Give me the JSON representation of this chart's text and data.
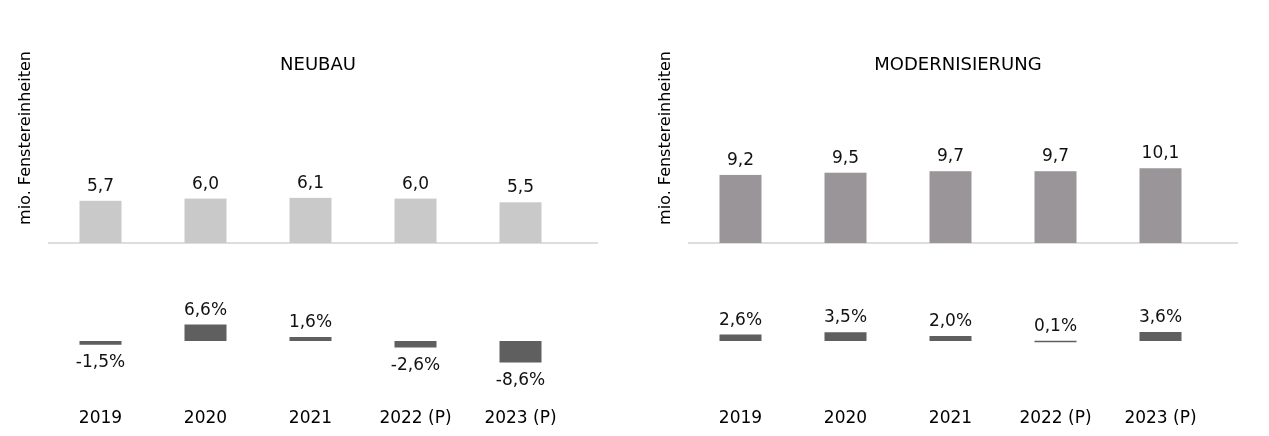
{
  "chart_data": [
    {
      "type": "bar",
      "title": "NEUBAU",
      "ylabel": "mio. Fenstereinheiten",
      "categories": [
        null,
        null,
        null,
        null,
        null
      ],
      "series": [
        {
          "color": "#c9c9c9",
          "values": [
            5.7,
            6.0,
            6.1,
            6.0,
            5.5
          ],
          "value_labels": [
            "5,7",
            "6,0",
            "6,1",
            "6,0",
            "5,5"
          ]
        }
      ]
    },
    {
      "type": "bar",
      "tick_labels": "x",
      "categories": [
        "2019",
        "2020",
        "2021",
        "2022 (P)",
        "2023 (P)"
      ],
      "series": [
        {
          "color": "#5f5f5f",
          "values": [
            -1.5,
            6.6,
            1.6,
            -2.6,
            -8.6
          ],
          "value_labels": [
            "-1,5%",
            "6,6%",
            "1,6%",
            "-2,6%",
            "-8,6%"
          ]
        }
      ]
    },
    {
      "type": "bar",
      "title": "MODERNISIERUNG",
      "ylabel": "mio. Fenstereinheiten",
      "categories": [
        null,
        null,
        null,
        null,
        null
      ],
      "series": [
        {
          "color": "#9a9598",
          "values": [
            9.2,
            9.5,
            9.7,
            9.7,
            10.1
          ],
          "value_labels": [
            "9,2",
            "9,5",
            "9,7",
            "9,7",
            "10,1"
          ]
        }
      ]
    },
    {
      "type": "bar",
      "tick_labels": "x",
      "categories": [
        "2019",
        "2020",
        "2021",
        "2022 (P)",
        "2023 (P)"
      ],
      "series": [
        {
          "color": "#5f5f5f",
          "values": [
            2.6,
            3.5,
            2.0,
            0.1,
            3.6
          ],
          "value_labels": [
            "2,6%",
            "3,5%",
            "2,0%",
            "0,1%",
            "3,6%"
          ]
        }
      ]
    }
  ]
}
